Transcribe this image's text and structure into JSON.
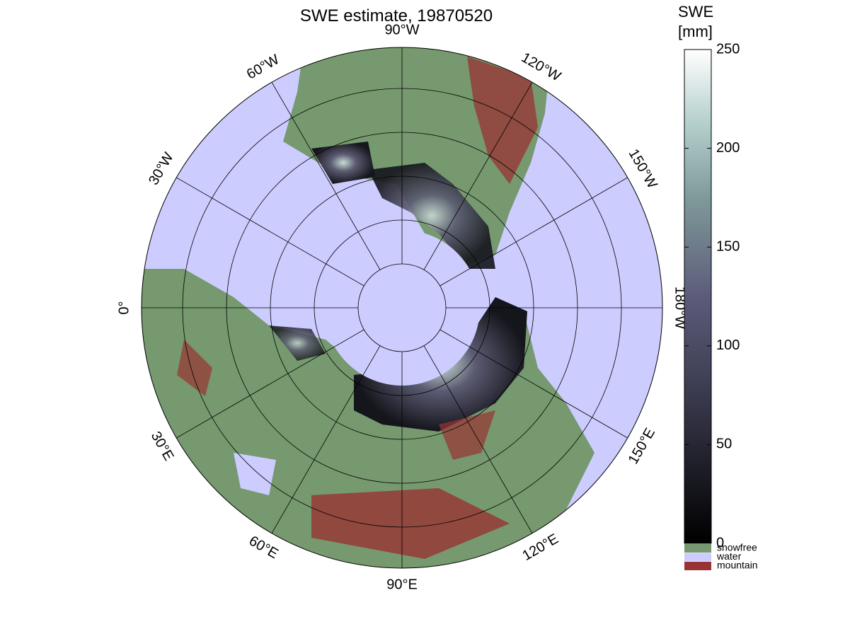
{
  "title": "SWE estimate, 19870520",
  "longitude_labels": [
    "90°W",
    "120°W",
    "150°W",
    "180°W",
    "150°E",
    "120°E",
    "90°E",
    "60°E",
    "30°E",
    "0°",
    "30°W",
    "60°W"
  ],
  "colorbar": {
    "title": [
      "SWE",
      "[mm]"
    ],
    "lim": [
      0,
      250
    ],
    "ticks": [
      0,
      50,
      100,
      150,
      200,
      250
    ]
  },
  "legend": [
    {
      "label": "snowfree",
      "color": "#76996f"
    },
    {
      "label": "water",
      "color": "#ccccff"
    },
    {
      "label": "mountain",
      "color": "#993333"
    }
  ]
}
